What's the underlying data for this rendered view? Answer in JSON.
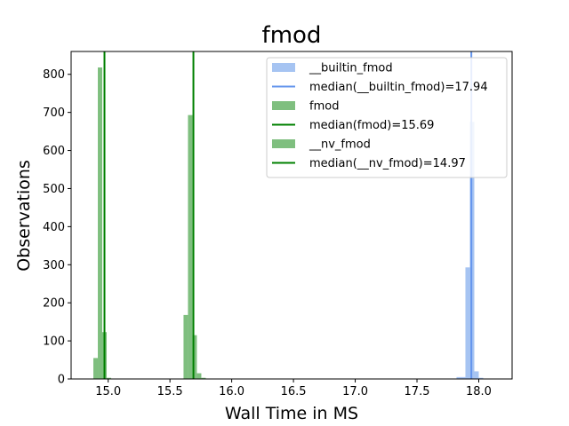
{
  "chart_data": {
    "type": "histogram",
    "title": "fmod",
    "xlabel": "Wall Time in MS",
    "ylabel": "Observations",
    "xlim": [
      14.7,
      18.27
    ],
    "ylim": [
      0,
      860
    ],
    "xticks": [
      15.0,
      15.5,
      16.0,
      16.5,
      17.0,
      17.5,
      18.0
    ],
    "xtick_labels": [
      "15.0",
      "15.5",
      "16.0",
      "16.5",
      "17.0",
      "17.5",
      "18.0"
    ],
    "yticks": [
      0,
      100,
      200,
      300,
      400,
      500,
      600,
      700,
      800
    ],
    "ytick_labels": [
      "0",
      "100",
      "200",
      "300",
      "400",
      "500",
      "600",
      "700",
      "800"
    ],
    "bin_width": 0.036,
    "series": [
      {
        "name": "__builtin_fmod",
        "color": "#a6c4f2",
        "median": 17.94,
        "median_color": "#6495ed",
        "median_label": "median(__builtin_fmod)=17.94",
        "bins": [
          {
            "x": 17.82,
            "count": 5
          },
          {
            "x": 17.856,
            "count": 5
          },
          {
            "x": 17.892,
            "count": 293
          },
          {
            "x": 17.928,
            "count": 675
          },
          {
            "x": 17.964,
            "count": 20
          },
          {
            "x": 18.0,
            "count": 3
          }
        ]
      },
      {
        "name": "fmod",
        "color": "#7fbf7f",
        "median": 15.69,
        "median_color": "#008000",
        "median_label": "median(fmod)=15.69",
        "bins": [
          {
            "x": 15.61,
            "count": 168
          },
          {
            "x": 15.646,
            "count": 693
          },
          {
            "x": 15.682,
            "count": 115
          },
          {
            "x": 15.718,
            "count": 15
          },
          {
            "x": 15.754,
            "count": 3
          }
        ]
      },
      {
        "name": "__nv_fmod",
        "color": "#7fbf7f",
        "median": 14.97,
        "median_color": "#008000",
        "median_label": "median(__nv_fmod)=14.97",
        "bins": [
          {
            "x": 14.88,
            "count": 55
          },
          {
            "x": 14.916,
            "count": 818
          },
          {
            "x": 14.952,
            "count": 123
          },
          {
            "x": 14.988,
            "count": 3
          }
        ]
      }
    ],
    "legend": {
      "position": "top-right",
      "entries": [
        {
          "kind": "patch",
          "label": "__builtin_fmod",
          "color": "#a6c4f2"
        },
        {
          "kind": "line",
          "label": "median(__builtin_fmod)=17.94",
          "color": "#6495ed"
        },
        {
          "kind": "patch",
          "label": "fmod",
          "color": "#7fbf7f"
        },
        {
          "kind": "line",
          "label": "median(fmod)=15.69",
          "color": "#008000"
        },
        {
          "kind": "patch",
          "label": "__nv_fmod",
          "color": "#7fbf7f"
        },
        {
          "kind": "line",
          "label": "median(__nv_fmod)=14.97",
          "color": "#008000"
        }
      ]
    }
  }
}
